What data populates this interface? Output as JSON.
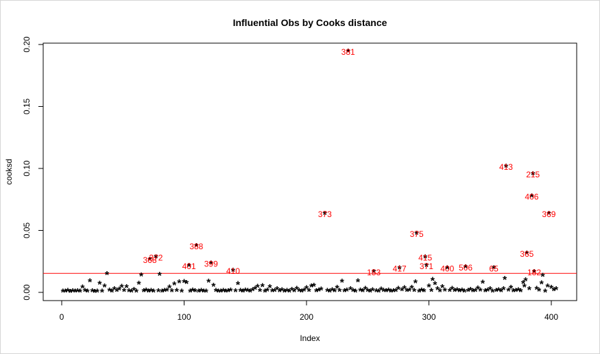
{
  "chart_data": {
    "type": "scatter",
    "title": "Influential Obs by Cooks distance",
    "xlabel": "Index",
    "ylabel": "cooksd",
    "xlim": [
      0,
      405
    ],
    "ylim": [
      0,
      0.2
    ],
    "x_ticks": [
      0,
      100,
      200,
      300,
      400
    ],
    "y_ticks": [
      0.0,
      0.05,
      0.1,
      0.15,
      0.2
    ],
    "y_tick_labels": [
      "0.00",
      "0.05",
      "0.10",
      "0.15",
      "0.20"
    ],
    "marker": "*",
    "point_color": "#000000",
    "threshold": {
      "value": 0.0153,
      "color": "#ff0000"
    },
    "label_color": "#ff0000",
    "labeled_points": [
      {
        "x": 72,
        "y": 0.026,
        "label": "368"
      },
      {
        "x": 77,
        "y": 0.028,
        "label": "372"
      },
      {
        "x": 104,
        "y": 0.021,
        "label": "401"
      },
      {
        "x": 110,
        "y": 0.037,
        "label": "388"
      },
      {
        "x": 122,
        "y": 0.023,
        "label": "399"
      },
      {
        "x": 140,
        "y": 0.017,
        "label": "410"
      },
      {
        "x": 215,
        "y": 0.063,
        "label": "373"
      },
      {
        "x": 234,
        "y": 0.194,
        "label": "381"
      },
      {
        "x": 255,
        "y": 0.016,
        "label": "153"
      },
      {
        "x": 276,
        "y": 0.019,
        "label": "417"
      },
      {
        "x": 290,
        "y": 0.047,
        "label": "375"
      },
      {
        "x": 297,
        "y": 0.028,
        "label": "415"
      },
      {
        "x": 298,
        "y": 0.021,
        "label": "371"
      },
      {
        "x": 315,
        "y": 0.019,
        "label": "400"
      },
      {
        "x": 330,
        "y": 0.02,
        "label": "506"
      },
      {
        "x": 353,
        "y": 0.019,
        "label": "65"
      },
      {
        "x": 363,
        "y": 0.101,
        "label": "413"
      },
      {
        "x": 380,
        "y": 0.031,
        "label": "365"
      },
      {
        "x": 384,
        "y": 0.077,
        "label": "406"
      },
      {
        "x": 385,
        "y": 0.095,
        "label": "215"
      },
      {
        "x": 386,
        "y": 0.016,
        "label": "182"
      },
      {
        "x": 398,
        "y": 0.063,
        "label": "369"
      }
    ],
    "points": [
      [
        1,
        0.0004
      ],
      [
        3,
        0.0002
      ],
      [
        5,
        0.0008
      ],
      [
        7,
        0.0001
      ],
      [
        9,
        0.0005
      ],
      [
        11,
        0.0003
      ],
      [
        13,
        0.0006
      ],
      [
        15,
        0.0002
      ],
      [
        17,
        0.0035
      ],
      [
        19,
        0.0009
      ],
      [
        21,
        0.0003
      ],
      [
        23,
        0.0085
      ],
      [
        25,
        0.0006
      ],
      [
        27,
        0.0001
      ],
      [
        29,
        0.0002
      ],
      [
        31,
        0.0065
      ],
      [
        33,
        0.0004
      ],
      [
        35,
        0.0045
      ],
      [
        37,
        0.0145
      ],
      [
        39,
        0.0011
      ],
      [
        41,
        0.0003
      ],
      [
        43,
        0.0021
      ],
      [
        45,
        0.0007
      ],
      [
        47,
        0.0018
      ],
      [
        49,
        0.0042
      ],
      [
        51,
        0.0009
      ],
      [
        53,
        0.0038
      ],
      [
        55,
        0.0006
      ],
      [
        57,
        0.0002
      ],
      [
        59,
        0.0016
      ],
      [
        61,
        0.0004
      ],
      [
        63,
        0.0065
      ],
      [
        65,
        0.0132
      ],
      [
        67,
        0.0005
      ],
      [
        69,
        0.0011
      ],
      [
        71,
        0.0003
      ],
      [
        73,
        0.0007
      ],
      [
        75,
        0.0002
      ],
      [
        79,
        0.0006
      ],
      [
        80,
        0.0137
      ],
      [
        82,
        0.0004
      ],
      [
        84,
        0.0008
      ],
      [
        86,
        0.0012
      ],
      [
        88,
        0.0035
      ],
      [
        90,
        0.0005
      ],
      [
        92,
        0.0062
      ],
      [
        94,
        0.0009
      ],
      [
        96,
        0.0078
      ],
      [
        98,
        0.0003
      ],
      [
        100,
        0.0081
      ],
      [
        102,
        0.0072
      ],
      [
        105,
        0.0004
      ],
      [
        107,
        0.0011
      ],
      [
        109,
        0.0006
      ],
      [
        112,
        0.0002
      ],
      [
        114,
        0.0007
      ],
      [
        116,
        0.0004
      ],
      [
        118,
        0.0003
      ],
      [
        120,
        0.0083
      ],
      [
        124,
        0.0051
      ],
      [
        126,
        0.0008
      ],
      [
        128,
        0.0002
      ],
      [
        130,
        0.0004
      ],
      [
        132,
        0.0009
      ],
      [
        134,
        0.0003
      ],
      [
        136,
        0.0006
      ],
      [
        138,
        0.0011
      ],
      [
        142,
        0.0005
      ],
      [
        144,
        0.0063
      ],
      [
        146,
        0.0007
      ],
      [
        148,
        0.0003
      ],
      [
        150,
        0.0012
      ],
      [
        152,
        0.0008
      ],
      [
        154,
        0.0002
      ],
      [
        156,
        0.0015
      ],
      [
        158,
        0.0024
      ],
      [
        160,
        0.0041
      ],
      [
        162,
        0.0009
      ],
      [
        164,
        0.0046
      ],
      [
        166,
        0.0003
      ],
      [
        168,
        0.0011
      ],
      [
        170,
        0.0039
      ],
      [
        172,
        0.0005
      ],
      [
        174,
        0.0008
      ],
      [
        176,
        0.0022
      ],
      [
        178,
        0.0006
      ],
      [
        180,
        0.0013
      ],
      [
        182,
        0.0004
      ],
      [
        184,
        0.0009
      ],
      [
        186,
        0.0003
      ],
      [
        188,
        0.0017
      ],
      [
        190,
        0.0006
      ],
      [
        192,
        0.0024
      ],
      [
        194,
        0.0009
      ],
      [
        196,
        0.0004
      ],
      [
        198,
        0.0012
      ],
      [
        200,
        0.0031
      ],
      [
        202,
        0.0007
      ],
      [
        204,
        0.0043
      ],
      [
        206,
        0.0051
      ],
      [
        208,
        0.0006
      ],
      [
        210,
        0.0011
      ],
      [
        212,
        0.0018
      ],
      [
        217,
        0.0009
      ],
      [
        219,
        0.0004
      ],
      [
        221,
        0.0013
      ],
      [
        223,
        0.0006
      ],
      [
        225,
        0.0032
      ],
      [
        227,
        0.0009
      ],
      [
        229,
        0.0084
      ],
      [
        231,
        0.0005
      ],
      [
        233,
        0.0012
      ],
      [
        236,
        0.0022
      ],
      [
        238,
        0.0007
      ],
      [
        240,
        0.0004
      ],
      [
        242,
        0.0087
      ],
      [
        244,
        0.0011
      ],
      [
        246,
        0.0006
      ],
      [
        248,
        0.0024
      ],
      [
        250,
        0.0009
      ],
      [
        252,
        0.0004
      ],
      [
        254,
        0.0013
      ],
      [
        257,
        0.0006
      ],
      [
        259,
        0.0003
      ],
      [
        261,
        0.0018
      ],
      [
        263,
        0.0008
      ],
      [
        265,
        0.0005
      ],
      [
        267,
        0.0011
      ],
      [
        269,
        0.0003
      ],
      [
        271,
        0.0006
      ],
      [
        273,
        0.0009
      ],
      [
        275,
        0.0024
      ],
      [
        278,
        0.0013
      ],
      [
        280,
        0.0031
      ],
      [
        282,
        0.0007
      ],
      [
        284,
        0.0011
      ],
      [
        286,
        0.0032
      ],
      [
        288,
        0.0008
      ],
      [
        289,
        0.0078
      ],
      [
        292,
        0.0004
      ],
      [
        294,
        0.0012
      ],
      [
        296,
        0.0006
      ],
      [
        300,
        0.0043
      ],
      [
        302,
        0.0009
      ],
      [
        303,
        0.0098
      ],
      [
        305,
        0.0064
      ],
      [
        307,
        0.0021
      ],
      [
        309,
        0.0005
      ],
      [
        311,
        0.0038
      ],
      [
        313,
        0.0011
      ],
      [
        317,
        0.0007
      ],
      [
        319,
        0.0024
      ],
      [
        321,
        0.0009
      ],
      [
        323,
        0.0014
      ],
      [
        325,
        0.0005
      ],
      [
        327,
        0.0011
      ],
      [
        329,
        0.0003
      ],
      [
        332,
        0.0008
      ],
      [
        334,
        0.0016
      ],
      [
        336,
        0.0005
      ],
      [
        338,
        0.0009
      ],
      [
        340,
        0.0028
      ],
      [
        342,
        0.0012
      ],
      [
        344,
        0.0074
      ],
      [
        346,
        0.0006
      ],
      [
        348,
        0.0011
      ],
      [
        350,
        0.0021
      ],
      [
        352,
        0.0004
      ],
      [
        355,
        0.0009
      ],
      [
        357,
        0.0014
      ],
      [
        359,
        0.0006
      ],
      [
        361,
        0.0021
      ],
      [
        362,
        0.0105
      ],
      [
        365,
        0.0011
      ],
      [
        367,
        0.0032
      ],
      [
        369,
        0.0006
      ],
      [
        371,
        0.0008
      ],
      [
        373,
        0.0014
      ],
      [
        375,
        0.0005
      ],
      [
        377,
        0.0072
      ],
      [
        378,
        0.0043
      ],
      [
        379,
        0.0095
      ],
      [
        382,
        0.0022
      ],
      [
        388,
        0.0025
      ],
      [
        390,
        0.0012
      ],
      [
        392,
        0.0068
      ],
      [
        393,
        0.0129
      ],
      [
        395,
        0.0004
      ],
      [
        397,
        0.0045
      ],
      [
        400,
        0.0034
      ],
      [
        402,
        0.0014
      ],
      [
        404,
        0.0022
      ]
    ]
  }
}
